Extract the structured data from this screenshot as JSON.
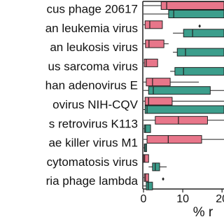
{
  "chart_data": {
    "type": "boxplot",
    "orientation": "horizontal",
    "categories": [
      "cus phage 20617",
      "an leukemia virus",
      "an leukosis virus",
      "us sarcoma virus",
      "han adenovirus E",
      "ovirus NIH-CQV",
      "s retrovirus K113",
      "ae killer virus M1",
      "cytomatosis virus",
      "ria phage lambda"
    ],
    "x_label": "% r",
    "xlim": [
      0,
      20.5
    ],
    "xticks": [
      0,
      10,
      20
    ],
    "series": [
      {
        "color": "#e8768a",
        "boxes": [
          {
            "low": 0,
            "q1": 4.5,
            "median": 5.9,
            "q3": 20.5,
            "high": 20.5
          },
          {
            "low": 0,
            "q1": 0.4,
            "median": 1.6,
            "q3": 4.8,
            "high": 4.8
          },
          {
            "low": 0,
            "q1": 0.5,
            "median": 1.4,
            "q3": 5.2,
            "high": 6.4
          },
          {
            "low": 0,
            "q1": 0.2,
            "median": 0.7,
            "q3": 3.6,
            "high": 3.6
          },
          {
            "low": 0,
            "q1": 0.7,
            "median": 2.3,
            "q3": 6.8,
            "high": 14.1
          },
          {
            "low": 0,
            "q1": 0.4,
            "median": 1.3,
            "q3": 7.3,
            "high": 20.5
          },
          {
            "low": 0,
            "q1": 3,
            "median": 8.9,
            "q3": 16.3,
            "high": 20.5
          },
          {
            "low": 0,
            "q1": 0.9,
            "median": 6.3,
            "q3": 14.8,
            "high": 20.5
          },
          {
            "low": 0,
            "q1": 0,
            "median": 0.3,
            "q3": 1.3,
            "high": 1.3
          },
          {
            "low": 0,
            "q1": 0.2,
            "median": 0.5,
            "q3": 1.3,
            "high": 1.3
          }
        ]
      },
      {
        "color": "#3c9e8c",
        "boxes": [
          {
            "low": 0,
            "q1": 6.4,
            "median": 7.7,
            "q3": 20.5,
            "high": 20.5
          },
          {
            "low": 7.5,
            "q1": 10.2,
            "median": 12.5,
            "q3": 20.5,
            "high": 20.5,
            "outliers": [
              14.3
            ]
          },
          {
            "low": 7.5,
            "q1": 8.6,
            "median": 10.7,
            "q3": 20.5,
            "high": 20.5
          },
          {
            "low": 6.8,
            "q1": 8,
            "median": 10.2,
            "q3": 20.5,
            "high": 20.5
          },
          {
            "low": 0,
            "q1": 1.3,
            "median": 2.5,
            "q3": 17,
            "high": 20.5
          },
          {
            "low": 0,
            "q1": 0.4,
            "median": 0.9,
            "q3": 20.5,
            "high": 20.5
          },
          {
            "low": 0,
            "q1": 0.2,
            "median": 0.5,
            "q3": 1.8,
            "high": 1.8
          },
          {
            "low": 0,
            "q1": 0.2,
            "median": 0.4,
            "q3": 0.8,
            "high": 0.8
          },
          {
            "low": 1.3,
            "q1": 2.3,
            "median": 3,
            "q3": 4.1,
            "high": 5.9
          },
          {
            "low": 0,
            "q1": 0.7,
            "median": 1.2,
            "q3": 2.3,
            "high": 2.3,
            "outliers": [
              5
            ]
          }
        ]
      }
    ]
  }
}
